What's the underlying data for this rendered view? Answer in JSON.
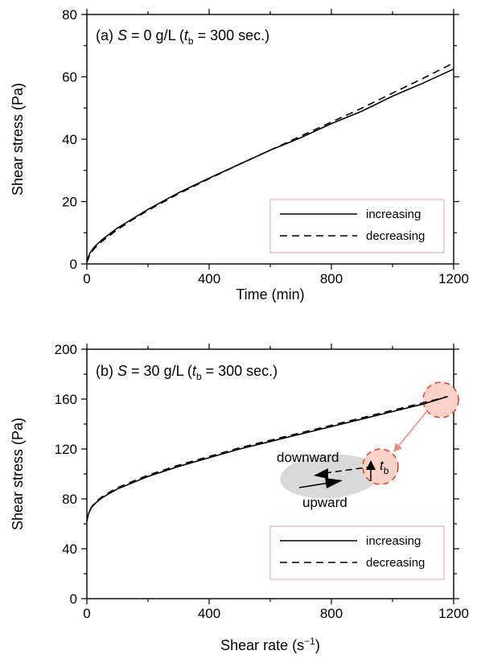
{
  "chart_data": [
    {
      "type": "line",
      "panel_label": "(a)",
      "title_parts": {
        "var": "S",
        "eq": " = 0 g/L (",
        "tvar": "t",
        "tsub": "b",
        "tail": " = 300 sec.)"
      },
      "xlabel": "Time (min)",
      "ylabel": "Shear stress (Pa)",
      "xlim": [
        0,
        1200
      ],
      "ylim": [
        0,
        80
      ],
      "xticks": [
        0,
        400,
        800,
        1200
      ],
      "yticks": [
        0,
        20,
        40,
        60,
        80
      ],
      "legend_position": "lower-right",
      "series": [
        {
          "name": "increasing",
          "dash": "solid",
          "x": [
            0,
            10,
            25,
            50,
            100,
            150,
            200,
            300,
            400,
            500,
            600,
            700,
            800,
            900,
            1000,
            1100,
            1200
          ],
          "y": [
            1,
            3.5,
            5.5,
            7.8,
            11.5,
            14.5,
            17.5,
            22.8,
            27.5,
            32,
            36.5,
            40.5,
            45,
            49,
            53.8,
            58,
            62.5
          ]
        },
        {
          "name": "decreasing",
          "dash": "dashed",
          "x": [
            0,
            10,
            25,
            50,
            100,
            150,
            200,
            300,
            400,
            500,
            600,
            700,
            800,
            900,
            1000,
            1100,
            1200
          ],
          "y": [
            0.5,
            3,
            5,
            7.3,
            11,
            14.2,
            17.2,
            22.5,
            27.3,
            32,
            36.5,
            41,
            45.5,
            50,
            54.8,
            59.5,
            64.5
          ]
        }
      ]
    },
    {
      "type": "line",
      "panel_label": "(b)",
      "title_parts": {
        "var": "S",
        "eq": " = 30 g/L (",
        "tvar": "t",
        "tsub": "b",
        "tail": " = 300 sec.)"
      },
      "xlabel_main": "Shear rate (s",
      "xlabel_sup": "−1",
      "xlabel_tail": ")",
      "ylabel": "Shear stress (Pa)",
      "xlim": [
        0,
        1200
      ],
      "ylim": [
        0,
        200
      ],
      "xticks": [
        0,
        400,
        800,
        1200
      ],
      "yticks": [
        0,
        40,
        80,
        120,
        160,
        200
      ],
      "legend_position": "lower-right",
      "series": [
        {
          "name": "increasing",
          "dash": "solid",
          "x": [
            0,
            5,
            15,
            30,
            50,
            100,
            150,
            200,
            300,
            400,
            500,
            600,
            700,
            800,
            900,
            1000,
            1100,
            1180
          ],
          "y": [
            62,
            68,
            73,
            77,
            81,
            88,
            93,
            98,
            106,
            113,
            120,
            126,
            132,
            138,
            144,
            150,
            156,
            162
          ]
        },
        {
          "name": "decreasing",
          "dash": "dashed",
          "x": [
            0,
            5,
            15,
            30,
            50,
            100,
            150,
            200,
            300,
            400,
            500,
            600,
            700,
            800,
            900,
            1000,
            1100,
            1180
          ],
          "y": [
            62,
            68.5,
            73.5,
            77.8,
            81.8,
            89,
            94,
            99,
            107,
            114,
            121,
            127,
            133,
            139,
            145,
            151,
            157,
            162
          ]
        }
      ],
      "annotations": {
        "downward": "downward",
        "upward": "upward",
        "tb_var": "t",
        "tb_sub": "b"
      }
    }
  ]
}
